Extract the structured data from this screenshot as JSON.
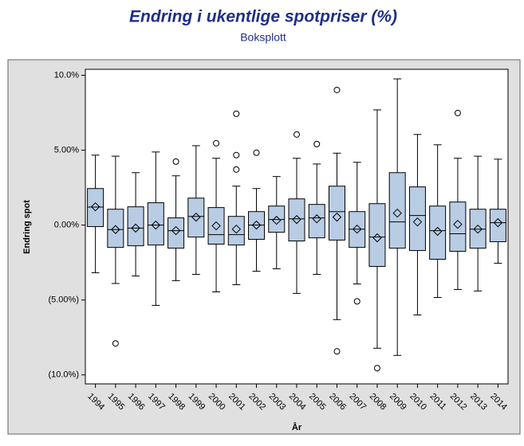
{
  "chart_data": {
    "type": "box",
    "title": "Endring i ukentlige spotpriser (%)",
    "subtitle": "Boksplott",
    "y_label": "Endring spot",
    "x_label": "År",
    "categories": [
      "1994",
      "1995",
      "1996",
      "1997",
      "1998",
      "1999",
      "2000",
      "2001",
      "2002",
      "2003",
      "2004",
      "2005",
      "2006",
      "2007",
      "2008",
      "2009",
      "2010",
      "2011",
      "2012",
      "2013",
      "2014"
    ],
    "low": [
      -3.18,
      -3.9,
      -3.4,
      -5.36,
      -3.71,
      -3.29,
      -4.46,
      -3.98,
      -3.08,
      -2.92,
      -4.56,
      -3.29,
      -6.31,
      -3.93,
      -8.22,
      -8.7,
      -6.0,
      -4.83,
      -4.3,
      -4.4,
      -2.55
    ],
    "q1": [
      -0.1,
      -1.49,
      -1.38,
      -1.33,
      -1.54,
      -0.8,
      -1.27,
      -1.33,
      -0.95,
      -0.48,
      -1.06,
      -0.85,
      -1.0,
      -1.49,
      -2.76,
      -1.54,
      -1.7,
      -2.28,
      -1.75,
      -1.54,
      -1.11
    ],
    "median": [
      1.2,
      -0.3,
      -0.2,
      0,
      -0.37,
      0.58,
      -0.64,
      -0.64,
      0,
      0.37,
      0.42,
      0.48,
      0.9,
      -0.27,
      -0.8,
      0.21,
      0.64,
      -0.37,
      -0.58,
      -0.27,
      0.16
    ],
    "q3": [
      2.44,
      1.06,
      1.22,
      1.49,
      0.48,
      1.8,
      1.17,
      0.58,
      0.9,
      1.27,
      1.75,
      1.38,
      2.6,
      0.9,
      1.43,
      3.5,
      2.55,
      1.27,
      1.54,
      1.06,
      1.06
    ],
    "high": [
      4.67,
      4.6,
      3.5,
      4.88,
      3.29,
      5.3,
      4.46,
      2.6,
      2.44,
      3.24,
      4.46,
      4.08,
      4.8,
      4.19,
      7.69,
      9.76,
      6.05,
      5.36,
      4.46,
      4.6,
      4.4
    ],
    "mean": [
      1.22,
      -0.3,
      -0.2,
      0,
      -0.37,
      0.53,
      -0.05,
      -0.27,
      0,
      0.32,
      0.37,
      0.42,
      0.53,
      -0.27,
      -0.85,
      0.8,
      0.21,
      -0.42,
      0.05,
      -0.27,
      0.16
    ],
    "outliers": [
      [],
      [
        -7.9
      ],
      [],
      [],
      [
        4.24
      ],
      [],
      [
        5.46
      ],
      [
        7.43,
        4.67,
        3.71
      ],
      [
        4.83
      ],
      [],
      [
        6.05
      ],
      [
        5.41
      ],
      [
        9.02,
        -8.43
      ],
      [
        -5.09
      ],
      [
        -9.55
      ],
      [],
      [],
      [],
      [
        7.48
      ],
      [],
      []
    ],
    "box_color": "#b8cce4",
    "ylim": [
      -10.6,
      10.4
    ],
    "yticks": [
      {
        "value": 10,
        "label": "10.0%"
      },
      {
        "value": 5,
        "label": "5.00%"
      },
      {
        "value": 0,
        "label": "0.00%"
      },
      {
        "value": -5,
        "label": "(5.00%)"
      },
      {
        "value": -10,
        "label": "(10.0%)"
      }
    ]
  }
}
